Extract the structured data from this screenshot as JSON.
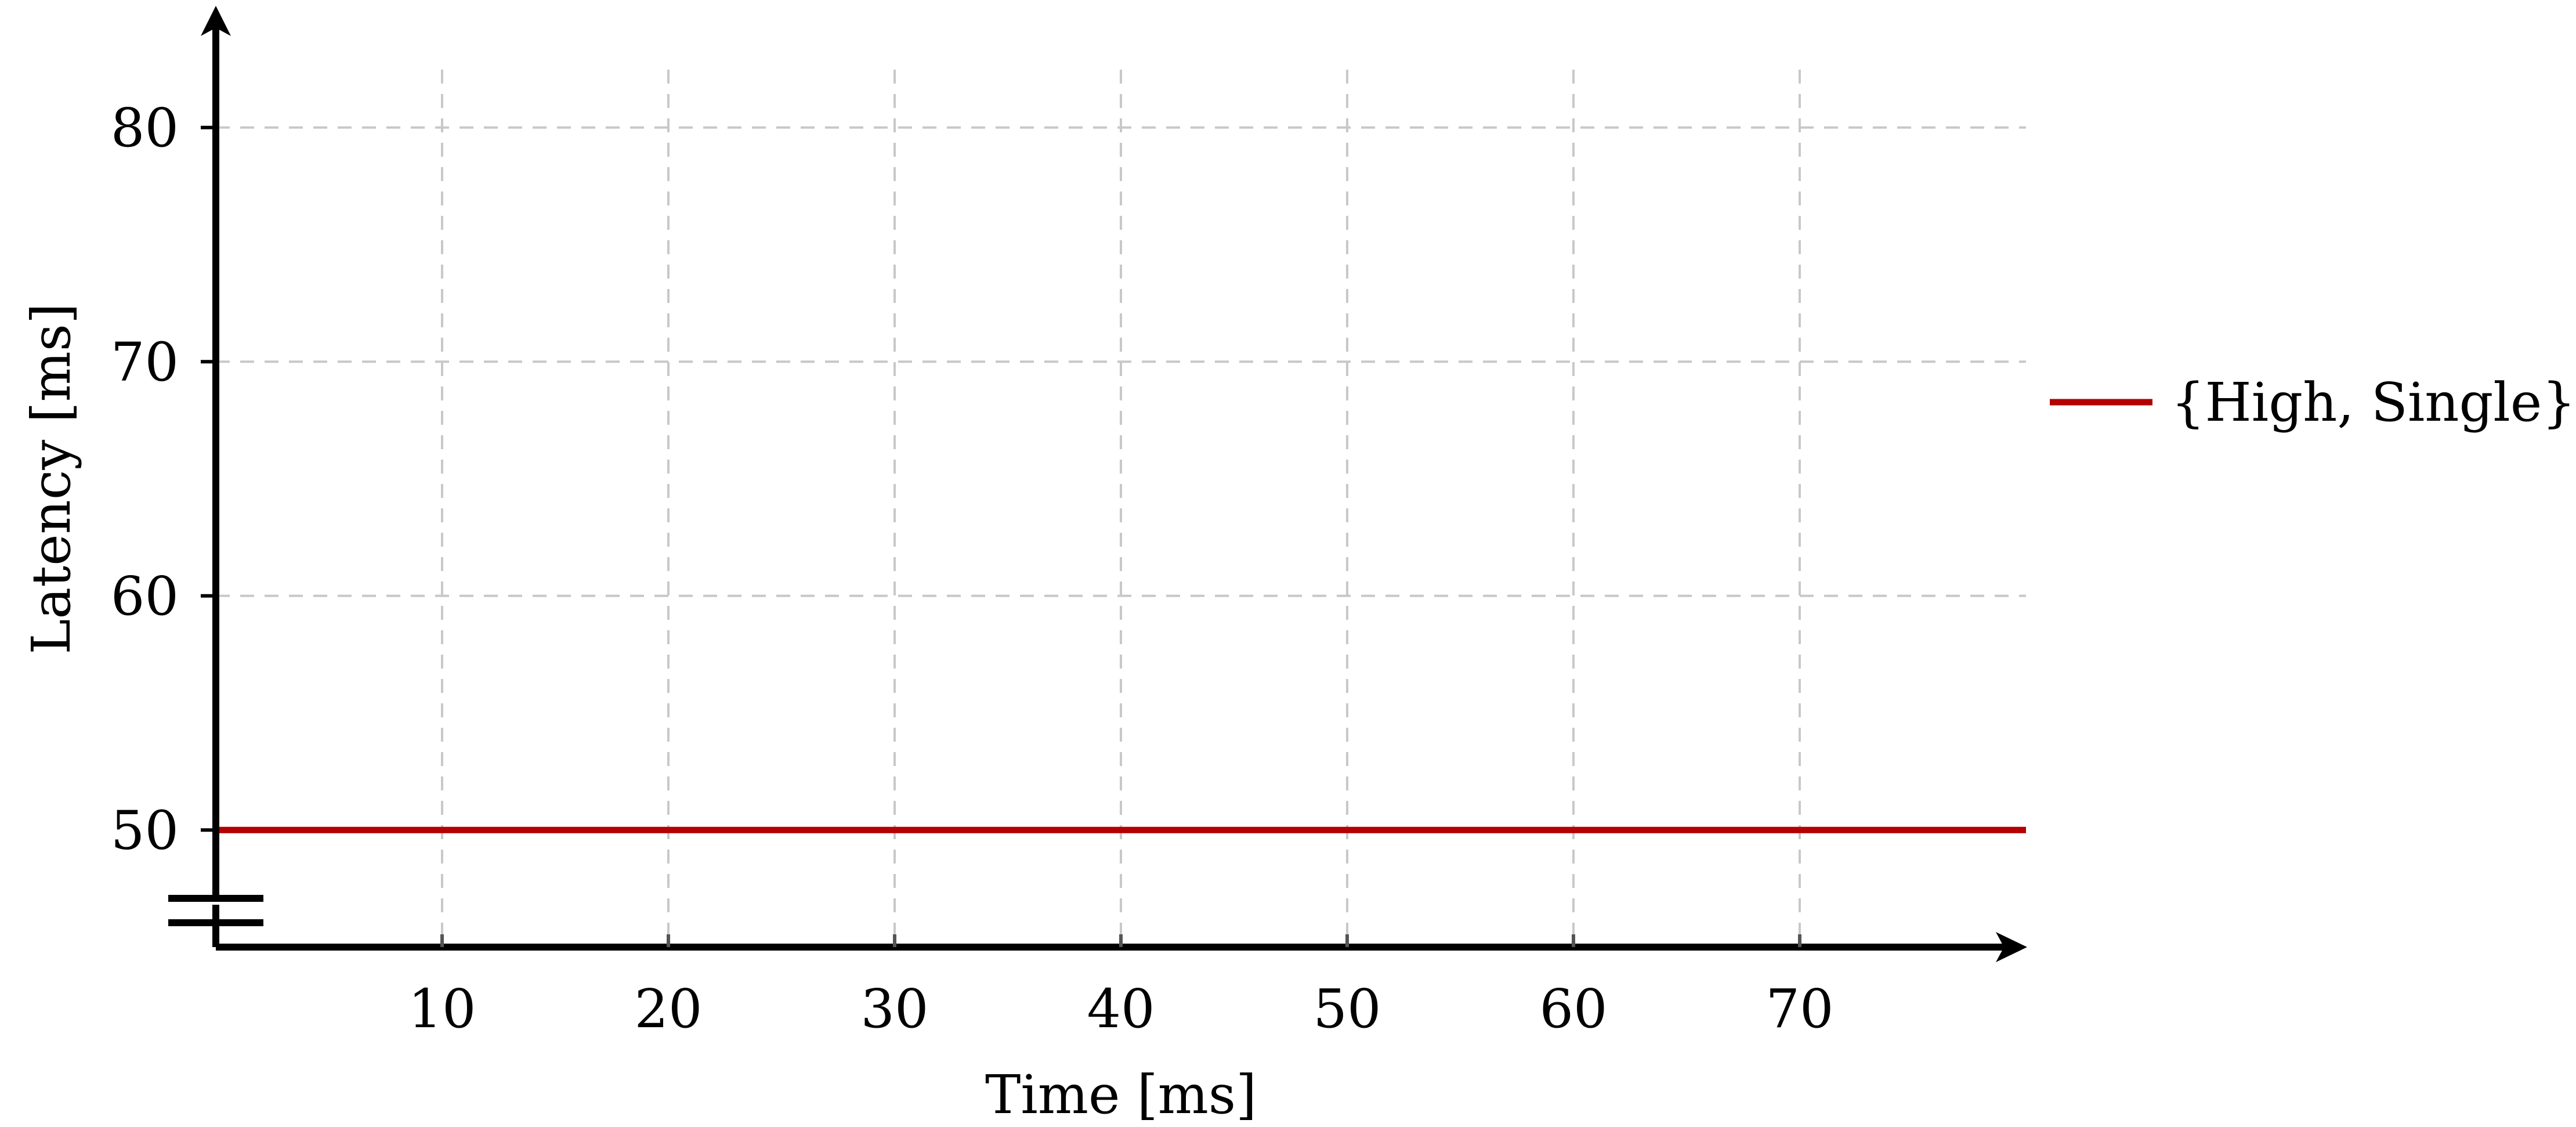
{
  "chart_data": {
    "type": "line",
    "xlabel": "Time [ms]",
    "ylabel": "Latency [ms]",
    "x_ticks": [
      10,
      20,
      30,
      40,
      50,
      60,
      70
    ],
    "y_ticks": [
      50,
      60,
      70,
      80
    ],
    "xlim": [
      0,
      80
    ],
    "ylim": [
      45,
      85
    ],
    "axis_break": "y",
    "grid": true,
    "legend_position": "right",
    "series": [
      {
        "name": "{High, Single}",
        "color": "#b30000",
        "x": [
          0,
          80
        ],
        "y": [
          50,
          50
        ]
      }
    ]
  }
}
